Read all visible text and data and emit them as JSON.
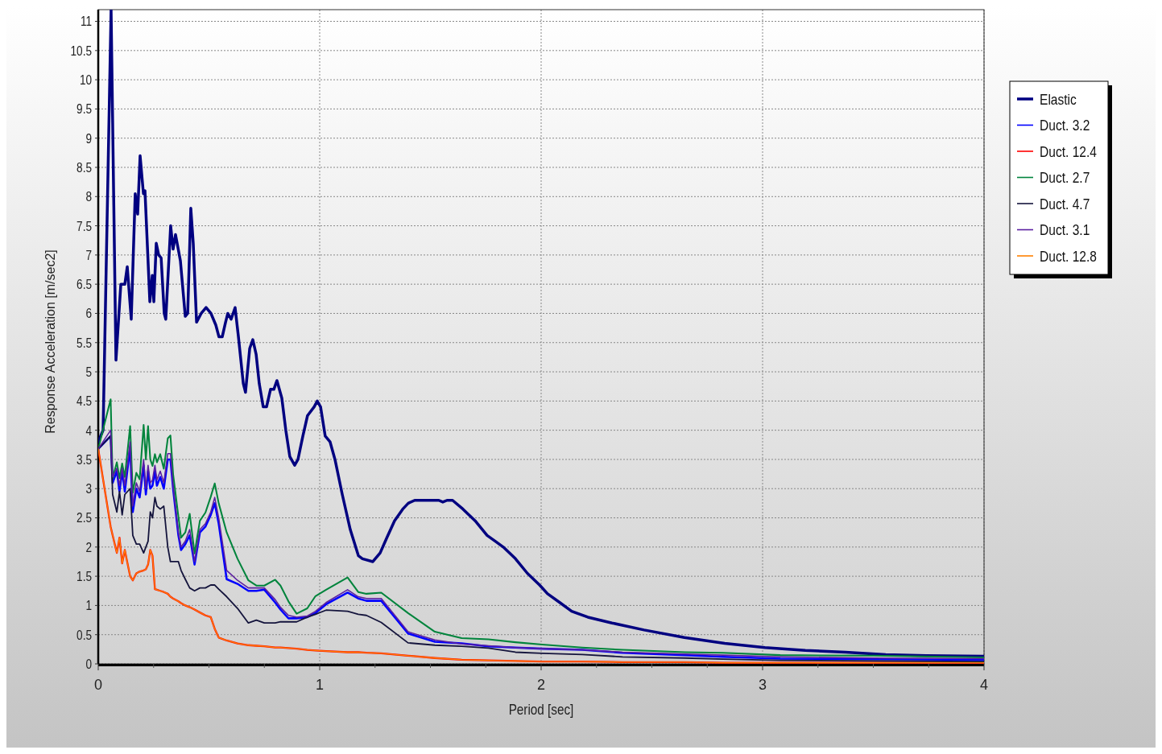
{
  "chart_data": {
    "type": "line",
    "xlabel": "Period [sec]",
    "ylabel": "Response Acceleration [m/sec2]",
    "xlim": [
      0,
      4
    ],
    "ylim": [
      0,
      11.2
    ],
    "xticks": [
      0,
      1,
      2,
      3,
      4
    ],
    "yticks": [
      0,
      0.5,
      1,
      1.5,
      2,
      2.5,
      3,
      3.5,
      4,
      4.5,
      5,
      5.5,
      6,
      6.5,
      7,
      7.5,
      8,
      8.5,
      9,
      9.5,
      10,
      10.5,
      11
    ],
    "grid": true,
    "legend": "top right",
    "line_style": "solid",
    "marker": "none",
    "x": [
      0,
      0.056,
      0.065,
      0.084,
      0.096,
      0.108,
      0.12,
      0.144,
      0.156,
      0.172,
      0.187,
      0.205,
      0.215,
      0.225,
      0.235,
      0.245,
      0.256,
      0.265,
      0.28,
      0.296,
      0.314,
      0.326,
      0.338,
      0.362,
      0.374,
      0.393,
      0.413,
      0.435,
      0.459,
      0.484,
      0.508,
      0.526,
      0.544,
      0.58,
      0.629,
      0.678,
      0.714,
      0.75,
      0.799,
      0.823,
      0.859,
      0.896,
      0.944,
      0.981,
      1.029,
      1.126,
      1.174,
      1.211,
      1.278,
      1.399,
      1.52,
      1.641,
      1.762,
      1.884,
      2.005,
      2.186,
      2.368,
      2.65,
      2.82,
      3.08,
      3.5,
      4.0
    ],
    "series": [
      {
        "name": "Elastic",
        "color": "#000080",
        "x": [
          0,
          0.022,
          0.058,
          0.08,
          0.102,
          0.12,
          0.131,
          0.149,
          0.167,
          0.178,
          0.189,
          0.204,
          0.211,
          0.233,
          0.244,
          0.251,
          0.262,
          0.273,
          0.284,
          0.298,
          0.305,
          0.327,
          0.338,
          0.349,
          0.371,
          0.393,
          0.404,
          0.418,
          0.429,
          0.444,
          0.465,
          0.487,
          0.509,
          0.531,
          0.545,
          0.56,
          0.575,
          0.585,
          0.6,
          0.618,
          0.633,
          0.655,
          0.665,
          0.684,
          0.698,
          0.713,
          0.727,
          0.745,
          0.76,
          0.778,
          0.793,
          0.807,
          0.829,
          0.847,
          0.865,
          0.887,
          0.902,
          0.924,
          0.945,
          0.975,
          0.989,
          1.004,
          1.025,
          1.047,
          1.069,
          1.102,
          1.138,
          1.175,
          1.193,
          1.24,
          1.273,
          1.302,
          1.338,
          1.375,
          1.4,
          1.429,
          1.538,
          1.556,
          1.575,
          1.6,
          1.647,
          1.702,
          1.756,
          1.793,
          1.829,
          1.884,
          1.938,
          1.993,
          2.029,
          2.084,
          2.138,
          2.211,
          2.32,
          2.465,
          2.647,
          2.829,
          3.011,
          3.193,
          3.375,
          3.556,
          3.738,
          4
        ],
        "values": [
          3.8,
          4.0,
          11.2,
          5.2,
          6.5,
          6.5,
          6.8,
          5.9,
          8.05,
          7.7,
          8.7,
          8.05,
          8.1,
          6.2,
          6.65,
          6.2,
          7.2,
          7.0,
          6.95,
          6.0,
          5.9,
          7.5,
          7.1,
          7.35,
          6.9,
          5.95,
          6.0,
          7.8,
          7.2,
          5.85,
          6.0,
          6.1,
          6.0,
          5.8,
          5.6,
          5.6,
          5.85,
          6.0,
          5.9,
          6.1,
          5.6,
          4.8,
          4.65,
          5.4,
          5.55,
          5.3,
          4.8,
          4.4,
          4.4,
          4.7,
          4.7,
          4.85,
          4.55,
          4.0,
          3.55,
          3.4,
          3.5,
          3.9,
          4.25,
          4.4,
          4.5,
          4.4,
          3.9,
          3.8,
          3.5,
          2.9,
          2.3,
          1.85,
          1.8,
          1.75,
          1.9,
          2.15,
          2.45,
          2.65,
          2.75,
          2.8,
          2.8,
          2.77,
          2.8,
          2.8,
          2.65,
          2.45,
          2.2,
          2.1,
          2.0,
          1.8,
          1.55,
          1.35,
          1.2,
          1.05,
          0.9,
          0.8,
          0.7,
          0.58,
          0.45,
          0.35,
          0.28,
          0.23,
          0.2,
          0.16,
          0.14,
          0.13
        ]
      },
      {
        "name": "Duct. 3.2",
        "color": "#0000ff",
        "values": [
          3.68,
          3.9,
          3.1,
          3.3,
          2.95,
          3.3,
          2.95,
          3.7,
          2.6,
          3.0,
          2.85,
          3.4,
          2.9,
          3.3,
          3.0,
          3.05,
          3.3,
          3.05,
          3.2,
          3.0,
          3.5,
          3.5,
          3.0,
          2.2,
          1.95,
          2.05,
          2.2,
          1.7,
          2.25,
          2.35,
          2.55,
          2.75,
          2.4,
          1.45,
          1.37,
          1.25,
          1.25,
          1.27,
          1.05,
          0.93,
          0.78,
          0.78,
          0.8,
          0.87,
          1.02,
          1.22,
          1.12,
          1.08,
          1.08,
          0.52,
          0.38,
          0.35,
          0.3,
          0.28,
          0.26,
          0.24,
          0.19,
          0.15,
          0.12,
          0.09,
          0.08,
          0.07
        ]
      },
      {
        "name": "Duct. 12.4",
        "color": "#ff0000",
        "values": [
          3.68,
          2.35,
          2.2,
          1.9,
          2.16,
          1.72,
          1.95,
          1.5,
          1.43,
          1.55,
          1.58,
          1.6,
          1.62,
          1.7,
          1.95,
          1.85,
          1.28,
          1.27,
          1.25,
          1.23,
          1.2,
          1.15,
          1.12,
          1.07,
          1.04,
          1.0,
          0.97,
          0.93,
          0.88,
          0.83,
          0.8,
          0.6,
          0.45,
          0.4,
          0.35,
          0.32,
          0.31,
          0.3,
          0.28,
          0.28,
          0.27,
          0.26,
          0.24,
          0.23,
          0.22,
          0.2,
          0.2,
          0.19,
          0.18,
          0.14,
          0.1,
          0.07,
          0.06,
          0.05,
          0.04,
          0.04,
          0.03,
          0.03,
          0.02,
          0.02,
          0.02,
          0.02
        ]
      },
      {
        "name": "Duct. 2.7",
        "color": "#00843c",
        "values": [
          3.68,
          4.53,
          3.18,
          3.45,
          3.18,
          3.43,
          3.2,
          4.07,
          2.93,
          3.27,
          3.16,
          4.09,
          3.5,
          4.07,
          3.5,
          3.39,
          3.59,
          3.45,
          3.59,
          3.34,
          3.86,
          3.91,
          3.25,
          2.52,
          2.16,
          2.25,
          2.57,
          1.89,
          2.45,
          2.59,
          2.86,
          3.09,
          2.75,
          2.25,
          1.8,
          1.43,
          1.34,
          1.34,
          1.44,
          1.34,
          1.07,
          0.86,
          0.95,
          1.16,
          1.27,
          1.48,
          1.23,
          1.2,
          1.22,
          0.87,
          0.55,
          0.44,
          0.42,
          0.37,
          0.33,
          0.28,
          0.24,
          0.2,
          0.19,
          0.15,
          0.14,
          0.11
        ]
      },
      {
        "name": "Duct. 4.7",
        "color": "#14143c",
        "values": [
          3.68,
          3.9,
          2.9,
          2.6,
          2.95,
          2.55,
          2.9,
          3.0,
          2.2,
          2.05,
          2.05,
          1.9,
          2.0,
          2.1,
          2.6,
          2.5,
          2.85,
          2.7,
          2.65,
          2.7,
          2.0,
          1.75,
          1.75,
          1.75,
          1.6,
          1.45,
          1.3,
          1.25,
          1.3,
          1.3,
          1.35,
          1.35,
          1.28,
          1.15,
          0.95,
          0.7,
          0.75,
          0.7,
          0.7,
          0.72,
          0.72,
          0.72,
          0.8,
          0.85,
          0.92,
          0.9,
          0.85,
          0.83,
          0.71,
          0.36,
          0.32,
          0.3,
          0.27,
          0.2,
          0.18,
          0.16,
          0.12,
          0.1,
          0.08,
          0.06,
          0.05,
          0.04
        ]
      },
      {
        "name": "Duct. 3.1",
        "color": "#5a1ea0",
        "values": [
          3.68,
          4.0,
          3.2,
          3.35,
          3.05,
          3.35,
          3.05,
          3.8,
          2.7,
          3.1,
          2.95,
          3.5,
          3.0,
          3.4,
          3.1,
          3.15,
          3.4,
          3.15,
          3.3,
          3.1,
          3.6,
          3.6,
          3.05,
          2.25,
          2.0,
          2.1,
          2.3,
          1.75,
          2.3,
          2.4,
          2.6,
          2.85,
          2.5,
          1.6,
          1.43,
          1.3,
          1.3,
          1.3,
          1.1,
          0.97,
          0.83,
          0.8,
          0.82,
          0.9,
          1.05,
          1.27,
          1.15,
          1.12,
          1.12,
          0.55,
          0.41,
          0.34,
          0.31,
          0.28,
          0.26,
          0.24,
          0.2,
          0.17,
          0.15,
          0.12,
          0.1,
          0.09
        ]
      },
      {
        "name": "Duct. 12.8",
        "color": "#ff8000",
        "values": [
          3.68,
          2.35,
          2.2,
          1.9,
          2.16,
          1.72,
          1.95,
          1.5,
          1.43,
          1.55,
          1.58,
          1.6,
          1.62,
          1.7,
          1.95,
          1.85,
          1.28,
          1.27,
          1.25,
          1.23,
          1.2,
          1.15,
          1.12,
          1.07,
          1.04,
          1.0,
          0.97,
          0.93,
          0.88,
          0.83,
          0.8,
          0.6,
          0.45,
          0.4,
          0.35,
          0.32,
          0.31,
          0.3,
          0.28,
          0.28,
          0.27,
          0.26,
          0.24,
          0.23,
          0.22,
          0.2,
          0.2,
          0.19,
          0.18,
          0.14,
          0.1,
          0.07,
          0.06,
          0.05,
          0.04,
          0.04,
          0.03,
          0.03,
          0.02,
          0.02,
          0.02,
          0.02
        ]
      }
    ]
  }
}
